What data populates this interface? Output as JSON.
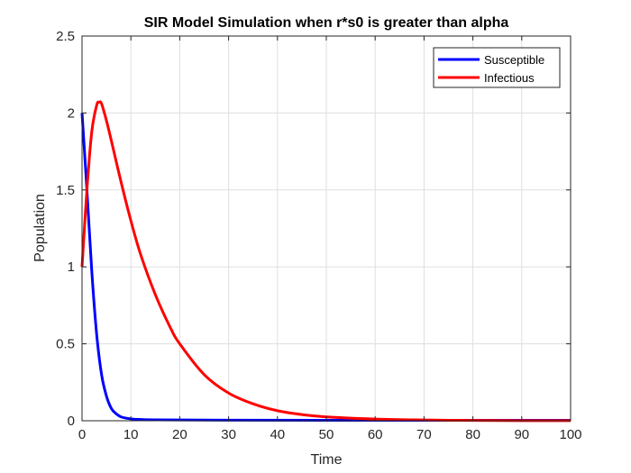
{
  "chart_data": {
    "type": "line",
    "title": "SIR Model Simulation when r*s0 is greater than alpha",
    "xlabel": "Time",
    "ylabel": "Population",
    "xlim": [
      0,
      100
    ],
    "ylim": [
      0,
      2.5
    ],
    "xticks": [
      0,
      10,
      20,
      30,
      40,
      50,
      60,
      70,
      80,
      90,
      100
    ],
    "yticks": [
      0,
      0.5,
      1,
      1.5,
      2,
      2.5
    ],
    "xtick_labels": [
      "0",
      "10",
      "20",
      "30",
      "40",
      "50",
      "60",
      "70",
      "80",
      "90",
      "100"
    ],
    "ytick_labels": [
      "0",
      "0.5",
      "1",
      "1.5",
      "2",
      "2.5"
    ],
    "grid": true,
    "legend_position": "top-right",
    "series": [
      {
        "name": "Susceptible",
        "color": "#0000ff",
        "x": [
          0,
          1,
          2,
          3,
          4,
          5,
          6,
          7,
          8,
          10,
          12,
          15,
          20,
          30,
          50,
          100
        ],
        "y": [
          2.0,
          1.5,
          0.97,
          0.56,
          0.3,
          0.16,
          0.08,
          0.045,
          0.025,
          0.012,
          0.008,
          0.006,
          0.005,
          0.004,
          0.003,
          0.003
        ]
      },
      {
        "name": "Infectious",
        "color": "#ff0000",
        "x": [
          0,
          1,
          2,
          3,
          3.5,
          4,
          5,
          6,
          8,
          10,
          12,
          15,
          18,
          20,
          25,
          30,
          35,
          40,
          45,
          50,
          60,
          70,
          80,
          90,
          100
        ],
        "y": [
          1.0,
          1.5,
          1.88,
          2.05,
          2.07,
          2.06,
          1.95,
          1.82,
          1.55,
          1.3,
          1.08,
          0.82,
          0.61,
          0.5,
          0.3,
          0.18,
          0.11,
          0.065,
          0.04,
          0.025,
          0.011,
          0.005,
          0.002,
          0.001,
          0.0005
        ]
      }
    ]
  }
}
